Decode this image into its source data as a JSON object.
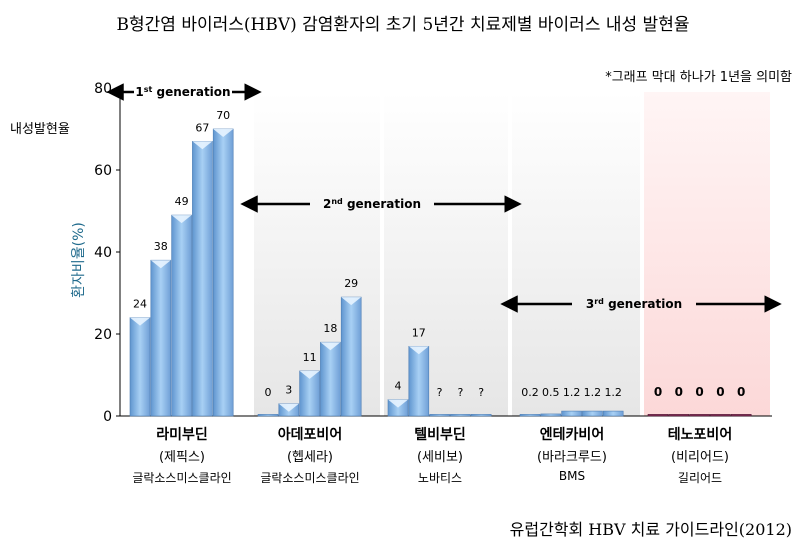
{
  "title": "B형간염 바이러스(HBV) 감염환자의 초기 5년간 치료제별 바이러스 내성 발현율",
  "note": "*그래프 막대 하나가 1년을 의미함",
  "source": "유럽간학회 HBV 치료 가이드라인(2012)",
  "y_axis_top_label": "내성발현율",
  "colors": {
    "bar_blue": "#8cbfee",
    "bar_blue_dark": "#5f95cf",
    "bar_purple": "#8a2f5c",
    "bg_gray": "#ebebeb",
    "bg_pink": "#fde4e4"
  },
  "chart_data": {
    "type": "bar",
    "title": "B형간염 바이러스(HBV) 감염환자의 초기 5년간 치료제별 바이러스 내성 발현율",
    "ylabel": "환자비율(%)",
    "ylim": [
      0,
      80
    ],
    "yticks": [
      "0",
      "20",
      "40",
      "60",
      "80"
    ],
    "grid": false,
    "groups": [
      {
        "name": "라미부딘",
        "brand": "(제픽스)",
        "maker": "글락소스미스클라인",
        "values": [
          24,
          38,
          49,
          67,
          70
        ],
        "labels": [
          "24",
          "38",
          "49",
          "67",
          "70"
        ],
        "color": "blue"
      },
      {
        "name": "아데포비어",
        "brand": "(헵세라)",
        "maker": "글락소스미스클라인",
        "values": [
          0,
          3,
          11,
          18,
          29
        ],
        "labels": [
          "0",
          "3",
          "11",
          "18",
          "29"
        ],
        "color": "blue"
      },
      {
        "name": "텔비부딘",
        "brand": "(세비보)",
        "maker": "노바티스",
        "values": [
          4,
          17,
          null,
          null,
          null
        ],
        "labels": [
          "4",
          "17",
          "?",
          "?",
          "?"
        ],
        "color": "blue"
      },
      {
        "name": "엔테카비어",
        "brand": "(바라크루드)",
        "maker": "BMS",
        "values": [
          0.2,
          0.5,
          1.2,
          1.2,
          1.2
        ],
        "labels": [
          "0.2",
          "0.5",
          "1.2",
          "1.2",
          "1.2"
        ],
        "color": "blue"
      },
      {
        "name": "테노포비어",
        "brand": "(비리어드)",
        "maker": "길리어드",
        "values": [
          0,
          0,
          0,
          0,
          0
        ],
        "labels": [
          "0",
          "0",
          "0",
          "0",
          "0"
        ],
        "color": "purple"
      }
    ],
    "generations": [
      {
        "label": "1st generation",
        "num": "1",
        "sup": "st",
        "text": " generation"
      },
      {
        "label": "2nd generation",
        "num": "2",
        "sup": "nd",
        "text": " generation"
      },
      {
        "label": "3rd generation",
        "num": "3",
        "sup": "rd",
        "text": " generation"
      }
    ]
  }
}
